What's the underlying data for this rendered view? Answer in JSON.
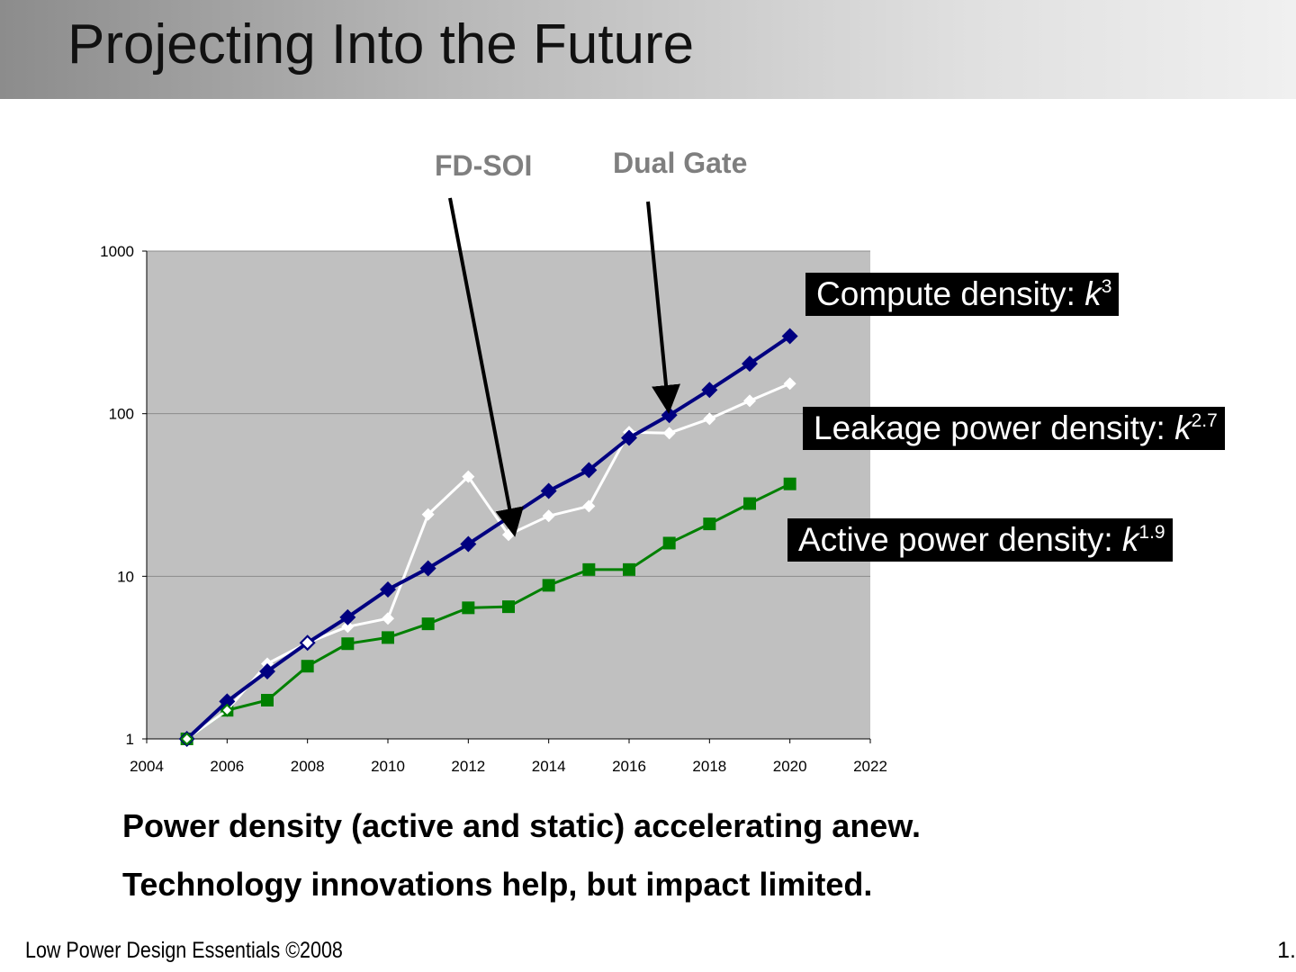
{
  "slide": {
    "title": "Projecting Into the Future",
    "bullets": [
      "Power density (active and static) accelerating anew.",
      "Technology innovations help, but impact limited."
    ],
    "footer_left": "Low Power Design Essentials ©2008",
    "footer_right": "1."
  },
  "annotations": {
    "fdsoi": "FD-SOI",
    "dual_gate": "Dual Gate"
  },
  "series_labels": {
    "compute": {
      "text": "Compute density: ",
      "var": "k",
      "exp": "3"
    },
    "leakage": {
      "text": "Leakage power density: ",
      "var": "k",
      "exp": "2.7"
    },
    "active": {
      "text": "Active power density: ",
      "var": "k",
      "exp": "1.9"
    }
  },
  "colors": {
    "plot_bg": "#c0c0c0",
    "compute": "#000080",
    "leakage": "#ffffff",
    "active": "#008000",
    "gridline": "#8c8c8c",
    "annotation_text": "#7f7f7f"
  },
  "chart_data": {
    "type": "line",
    "x_ticks": [
      2004,
      2006,
      2008,
      2010,
      2012,
      2014,
      2016,
      2018,
      2020,
      2022
    ],
    "y_ticks": [
      1,
      10,
      100,
      1000
    ],
    "xlim": [
      2004,
      2022
    ],
    "ylim": [
      1,
      1000
    ],
    "y_scale": "log",
    "grid": "horizontal major",
    "x": [
      2005,
      2006,
      2007,
      2008,
      2009,
      2010,
      2011,
      2012,
      2013,
      2014,
      2015,
      2016,
      2017,
      2018,
      2019,
      2020
    ],
    "series": [
      {
        "key": "compute",
        "marker": "diamond",
        "values": [
          1,
          1.7,
          2.6,
          3.9,
          5.6,
          8.3,
          11.2,
          15.8,
          23,
          33.5,
          45,
          71,
          98,
          140,
          203,
          300
        ]
      },
      {
        "key": "leakage",
        "marker": "diamond-small",
        "values": [
          1,
          1.5,
          2.9,
          3.9,
          4.9,
          5.5,
          24,
          41,
          18,
          23.5,
          27,
          77,
          76,
          93,
          120,
          153
        ]
      },
      {
        "key": "active",
        "marker": "square",
        "values": [
          1,
          1.5,
          1.73,
          2.8,
          3.85,
          4.2,
          5.1,
          6.4,
          6.5,
          8.8,
          11,
          11,
          16,
          21,
          28,
          37
        ]
      }
    ]
  }
}
